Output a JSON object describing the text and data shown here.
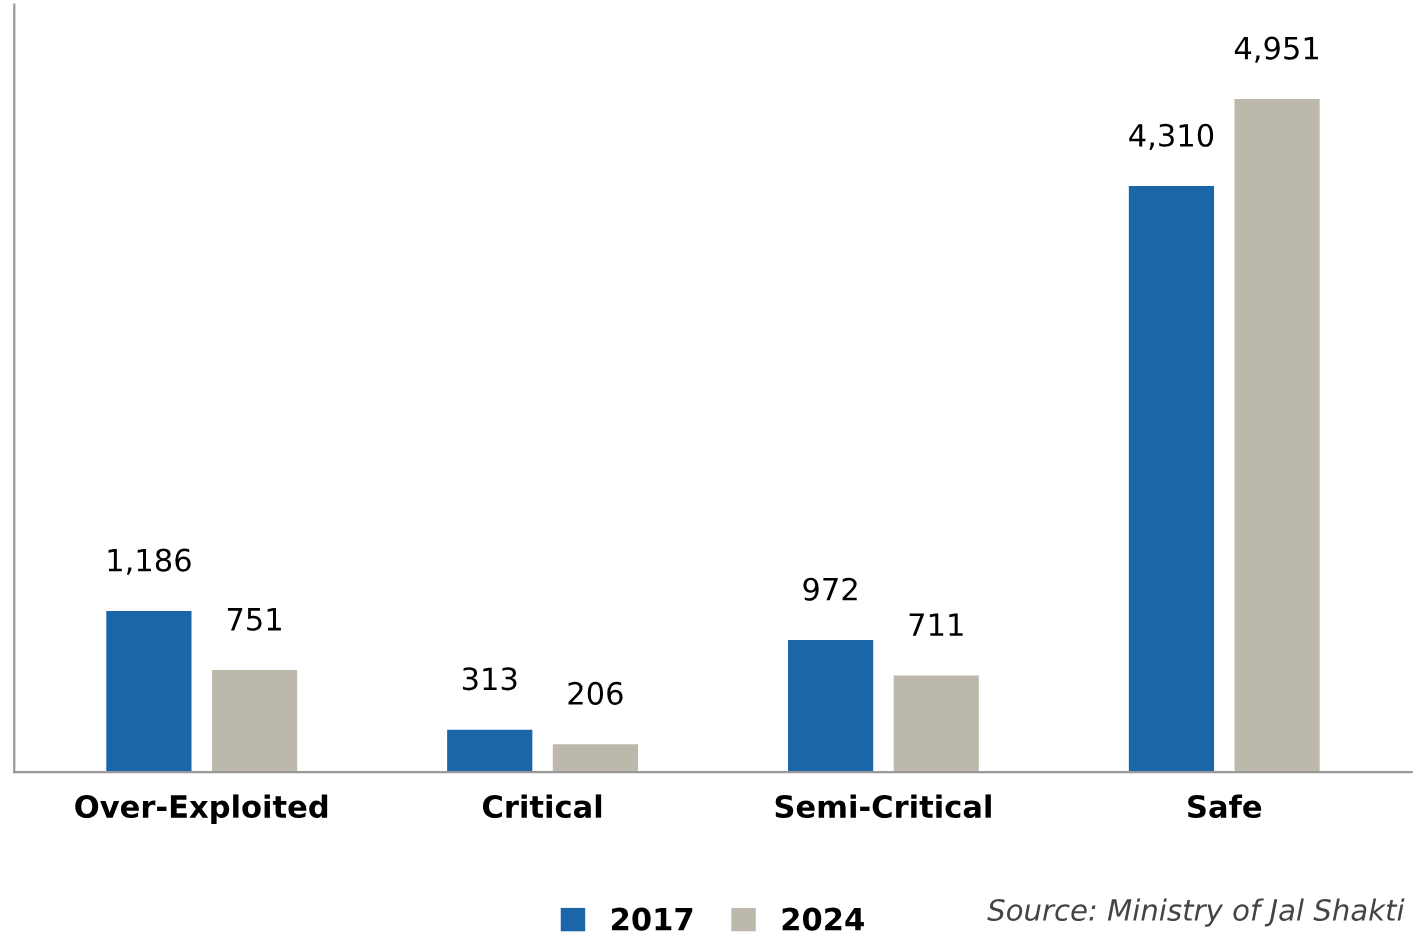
{
  "chart_data": {
    "type": "bar",
    "categories": [
      "Over-Exploited",
      "Critical",
      "Semi-Critical",
      "Safe"
    ],
    "series": [
      {
        "name": "2017",
        "color": "#1a66a8",
        "values": [
          1186,
          313,
          972,
          4310
        ],
        "value_labels": [
          "1,186",
          "313",
          "972",
          "4,310"
        ]
      },
      {
        "name": "2024",
        "color": "#bcb8ac",
        "values": [
          751,
          206,
          711,
          4951
        ],
        "value_labels": [
          "751",
          "206",
          "711",
          "4,951"
        ]
      }
    ],
    "tick_labels": "x",
    "grid": false,
    "legend": "bottom",
    "annotations": [
      "Source: Ministry of Jal Shakti"
    ]
  }
}
